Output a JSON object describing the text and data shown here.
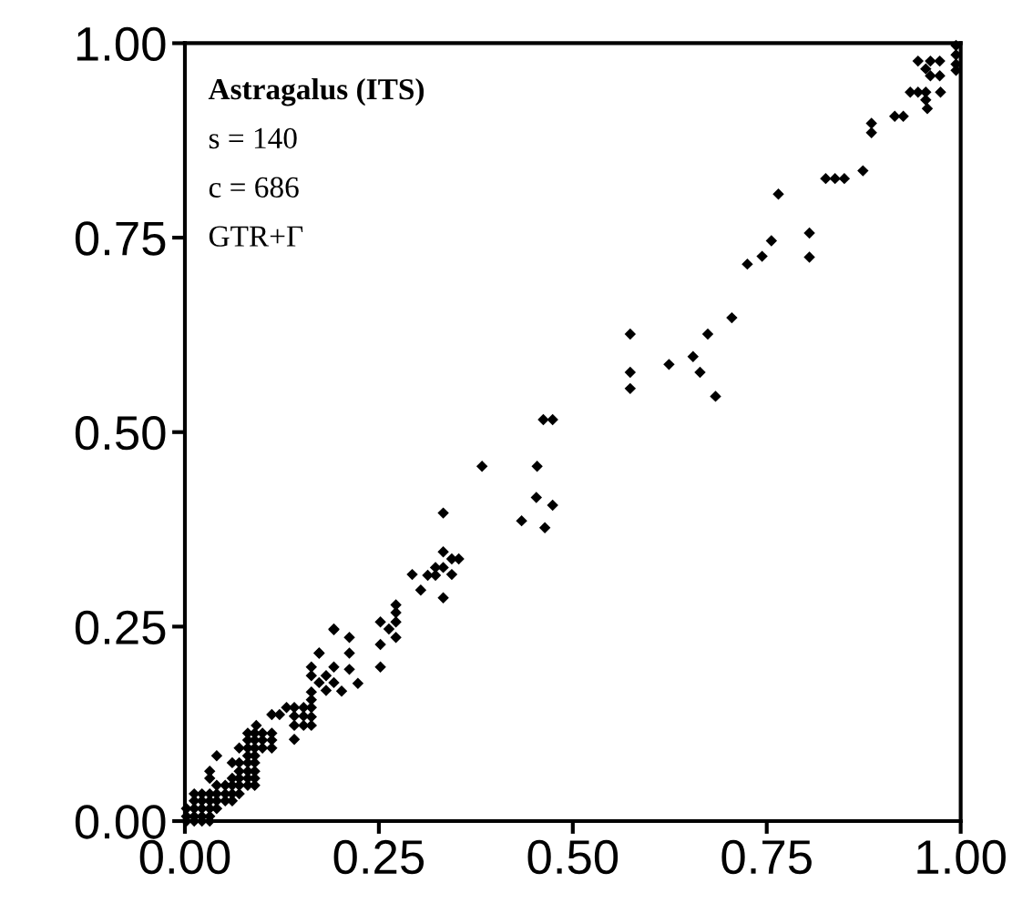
{
  "chart_data": {
    "type": "scatter",
    "annotations": [
      "Astragalus (ITS)",
      "s = 140",
      "c = 686",
      "GTR+Γ"
    ],
    "xlim": [
      0,
      1
    ],
    "ylim": [
      0,
      1
    ],
    "xticks": [
      {
        "value": 0,
        "label": "0.00"
      },
      {
        "value": 0.25,
        "label": "0.25"
      },
      {
        "value": 0.5,
        "label": "0.50"
      },
      {
        "value": 0.75,
        "label": "0.75"
      },
      {
        "value": 1,
        "label": "1.00"
      }
    ],
    "yticks": [
      {
        "value": 0,
        "label": "0.00"
      },
      {
        "value": 0.25,
        "label": "0.25"
      },
      {
        "value": 0.5,
        "label": "0.50"
      },
      {
        "value": 0.75,
        "label": "0.75"
      },
      {
        "value": 1,
        "label": "1.00"
      }
    ],
    "grid": false,
    "marker": "diamond",
    "series": [
      {
        "color": "#000000",
        "x": [
          0.002,
          0.012,
          0.022,
          0.032,
          0.002,
          0.012,
          0.022,
          0.032,
          0.002,
          0.012,
          0.022,
          0.032,
          0.041,
          0.012,
          0.022,
          0.032,
          0.041,
          0.052,
          0.061,
          0.012,
          0.022,
          0.032,
          0.041,
          0.052,
          0.061,
          0.07,
          0.041,
          0.052,
          0.061,
          0.07,
          0.081,
          0.09,
          0.032,
          0.061,
          0.07,
          0.081,
          0.09,
          0.032,
          0.07,
          0.081,
          0.09,
          0.061,
          0.07,
          0.081,
          0.09,
          0.041,
          0.081,
          0.09,
          0.07,
          0.081,
          0.09,
          0.1,
          0.112,
          0.081,
          0.09,
          0.1,
          0.112,
          0.081,
          0.09,
          0.1,
          0.112,
          0.092,
          0.112,
          0.122,
          0.131,
          0.141,
          0.141,
          0.141,
          0.141,
          0.153,
          0.153,
          0.153,
          0.163,
          0.163,
          0.163,
          0.163,
          0.163,
          0.163,
          0.163,
          0.173,
          0.173,
          0.182,
          0.182,
          0.192,
          0.192,
          0.202,
          0.212,
          0.223,
          0.173,
          0.192,
          0.212,
          0.212,
          0.192,
          0.252,
          0.252,
          0.263,
          0.272,
          0.272,
          0.272,
          0.272,
          0.252,
          0.293,
          0.304,
          0.313,
          0.323,
          0.323,
          0.333,
          0.333,
          0.333,
          0.344,
          0.344,
          0.353,
          0.333,
          0.383,
          0.434,
          0.453,
          0.454,
          0.464,
          0.474,
          0.462,
          0.474,
          0.574,
          0.574,
          0.574,
          0.624,
          0.655,
          0.664,
          0.674,
          0.684,
          0.705,
          0.725,
          0.744,
          0.756,
          0.765,
          0.805,
          0.805,
          0.826,
          0.838,
          0.85,
          0.874,
          0.885,
          0.885,
          0.915,
          0.926,
          0.935,
          0.945,
          0.955,
          0.974,
          0.955,
          0.957,
          0.945,
          0.961,
          0.973,
          0.955,
          0.961,
          0.973,
          0.994,
          0.994,
          0.994,
          0.994
        ],
        "values": [
          0.0,
          0.0,
          0.0,
          0.0,
          0.006,
          0.006,
          0.006,
          0.006,
          0.016,
          0.016,
          0.016,
          0.016,
          0.016,
          0.026,
          0.026,
          0.026,
          0.026,
          0.026,
          0.026,
          0.035,
          0.035,
          0.035,
          0.035,
          0.035,
          0.035,
          0.035,
          0.046,
          0.046,
          0.046,
          0.046,
          0.046,
          0.046,
          0.055,
          0.055,
          0.055,
          0.055,
          0.055,
          0.064,
          0.064,
          0.064,
          0.064,
          0.075,
          0.075,
          0.075,
          0.075,
          0.084,
          0.084,
          0.084,
          0.094,
          0.094,
          0.094,
          0.094,
          0.094,
          0.104,
          0.104,
          0.104,
          0.104,
          0.113,
          0.113,
          0.113,
          0.113,
          0.123,
          0.137,
          0.137,
          0.146,
          0.146,
          0.135,
          0.123,
          0.105,
          0.146,
          0.135,
          0.123,
          0.166,
          0.156,
          0.146,
          0.134,
          0.123,
          0.198,
          0.187,
          0.178,
          0.216,
          0.187,
          0.168,
          0.178,
          0.198,
          0.167,
          0.195,
          0.177,
          0.216,
          0.247,
          0.236,
          0.216,
          0.246,
          0.256,
          0.227,
          0.247,
          0.278,
          0.268,
          0.256,
          0.236,
          0.198,
          0.317,
          0.297,
          0.316,
          0.316,
          0.326,
          0.326,
          0.346,
          0.287,
          0.337,
          0.317,
          0.337,
          0.396,
          0.456,
          0.386,
          0.416,
          0.456,
          0.377,
          0.406,
          0.516,
          0.516,
          0.626,
          0.577,
          0.556,
          0.587,
          0.597,
          0.577,
          0.626,
          0.546,
          0.647,
          0.716,
          0.726,
          0.746,
          0.806,
          0.756,
          0.725,
          0.826,
          0.826,
          0.826,
          0.836,
          0.897,
          0.885,
          0.906,
          0.906,
          0.937,
          0.937,
          0.937,
          0.937,
          0.927,
          0.916,
          0.977,
          0.977,
          0.977,
          0.967,
          0.958,
          0.958,
          0.997,
          0.985,
          0.973,
          0.965
        ]
      }
    ]
  }
}
